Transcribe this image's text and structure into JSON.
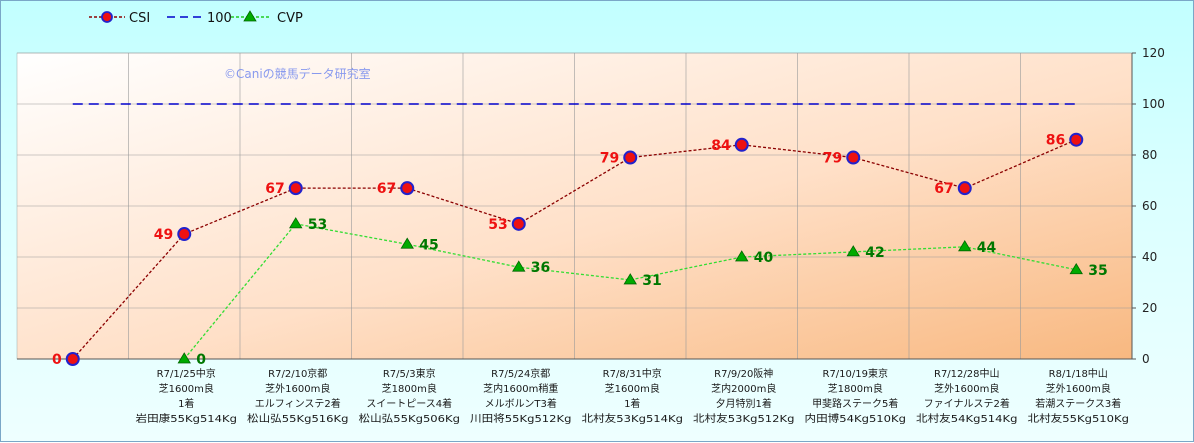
{
  "legend": {
    "items": [
      {
        "name": "CSI",
        "color": "#8b0000",
        "marker": "circle",
        "dash": "3,2"
      },
      {
        "name": "100",
        "color": "#0000cc",
        "marker": "none",
        "dash": "10,6"
      },
      {
        "name": "CVP",
        "color": "#22cc22",
        "marker": "triangle",
        "dash": "3,2"
      }
    ]
  },
  "watermark": "©Caniの競馬データ研究室",
  "chart_data": {
    "type": "line",
    "categories": [
      {
        "lines": [
          "",
          "",
          "",
          ""
        ]
      },
      {
        "lines": [
          "R7/1/25中京",
          "芝1600m良",
          "1着",
          "岩田康55Kg514Kg"
        ]
      },
      {
        "lines": [
          "R7/2/10京都",
          "芝外1600m良",
          "エルフィンステ2着",
          "松山弘55Kg516Kg"
        ]
      },
      {
        "lines": [
          "R7/5/3東京",
          "芝1800m良",
          "スイートピース4着",
          "松山弘55Kg506Kg"
        ]
      },
      {
        "lines": [
          "R7/5/24京都",
          "芝内1600m稍重",
          "メルボルンT3着",
          "川田将55Kg512Kg"
        ]
      },
      {
        "lines": [
          "R7/8/31中京",
          "芝1600m良",
          "1着",
          "北村友53Kg514Kg"
        ]
      },
      {
        "lines": [
          "R7/9/20阪神",
          "芝内2000m良",
          "夕月特別1着",
          "北村友53Kg512Kg"
        ]
      },
      {
        "lines": [
          "R7/10/19東京",
          "芝1800m良",
          "甲斐路ステーク5着",
          "内田博54Kg510Kg"
        ]
      },
      {
        "lines": [
          "R7/12/28中山",
          "芝外1600m良",
          "ファイナルステ2着",
          "北村友54Kg514Kg"
        ]
      },
      {
        "lines": [
          "R8/1/18中山",
          "芝外1600m良",
          "若潮ステークス3着",
          "北村友55Kg510Kg"
        ]
      }
    ],
    "series": [
      {
        "name": "CSI",
        "values": [
          0,
          49,
          67,
          67,
          53,
          79,
          84,
          79,
          67,
          86
        ],
        "color": "#8b0000",
        "marker_fill": "#ee1111",
        "marker_stroke": "#2222cc",
        "label_color": "#ee1111",
        "label_side": "left"
      },
      {
        "name": "100",
        "values": [
          100,
          100,
          100,
          100,
          100,
          100,
          100,
          100,
          100,
          100
        ],
        "color": "#0000cc",
        "start": 0
      },
      {
        "name": "CVP",
        "values": [
          null,
          0,
          53,
          45,
          36,
          31,
          40,
          42,
          44,
          35
        ],
        "color": "#33dd33",
        "marker_fill": "#00aa00",
        "label_color": "#007700",
        "label_side": "right"
      }
    ],
    "ylim": [
      0,
      120
    ],
    "yticks": [
      0,
      20,
      40,
      60,
      80,
      100,
      120
    ],
    "grid": true,
    "y_axis_side": "right",
    "legend_position": "top-left"
  }
}
